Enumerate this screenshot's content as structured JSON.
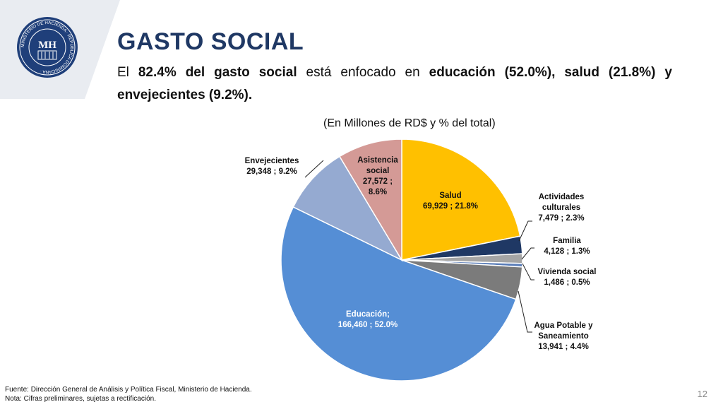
{
  "slide": {
    "title": "GASTO SOCIAL",
    "subtitle_parts": [
      {
        "text": "El ",
        "bold": false
      },
      {
        "text": "82.4% del gasto social",
        "bold": true
      },
      {
        "text": " está enfocado en ",
        "bold": false
      },
      {
        "text": "educación (52.0%), salud (21.8%) y envejecientes (9.2%).",
        "bold": true
      }
    ],
    "unit_note": "(En Millones de RD$ y % del total)",
    "footer_source": "Fuente: Dirección General de Análisis y Política Fiscal, Ministerio de Hacienda.",
    "footer_note": "Nota: Cifras preliminares, sujetas a rectificación.",
    "page_number": "12",
    "logo": {
      "monogram": "MH",
      "ring_text": "MINISTERIO DE HACIENDA · REPÚBLICA DOMINICANA ·"
    }
  },
  "chart_data": {
    "type": "pie",
    "title": "",
    "unit": "(En Millones de RD$ y % del total)",
    "slices": [
      {
        "name": "Salud",
        "value": 69929,
        "percent": 21.8,
        "color": "#ffc000",
        "label_lines": [
          "Salud",
          "69,929 ; 21.8%"
        ]
      },
      {
        "name": "Actividades culturales",
        "value": 7479,
        "percent": 2.3,
        "color": "#1f3864",
        "label_lines": [
          "Actividades",
          "culturales",
          "7,479 ; 2.3%"
        ]
      },
      {
        "name": "Familia",
        "value": 4128,
        "percent": 1.3,
        "color": "#a5a5a5",
        "label_lines": [
          "Familia",
          "4,128 ; 1.3%"
        ]
      },
      {
        "name": "Vivienda social",
        "value": 1486,
        "percent": 0.5,
        "color": "#5a7db8",
        "label_lines": [
          "Vivienda social",
          "1,486 ; 0.5%"
        ]
      },
      {
        "name": "Agua Potable y Saneamiento",
        "value": 13941,
        "percent": 4.4,
        "color": "#7b7b7b",
        "label_lines": [
          "Agua Potable y",
          "Saneamiento",
          "13,941 ; 4.4%"
        ]
      },
      {
        "name": "Educación",
        "value": 166460,
        "percent": 52.0,
        "color": "#558ed5",
        "label_lines": [
          "Educación;",
          "166,460 ; 52.0%"
        ]
      },
      {
        "name": "Envejecientes",
        "value": 29348,
        "percent": 9.2,
        "color": "#95aad1",
        "label_lines": [
          "Envejecientes",
          "29,348 ; 9.2%"
        ]
      },
      {
        "name": "Asistencia social",
        "value": 27572,
        "percent": 8.6,
        "color": "#d49a96",
        "label_lines": [
          "Asistencia",
          "social",
          "27,572 ;",
          "8.6%"
        ]
      }
    ],
    "start_angle": "12 o'clock",
    "direction": "clockwise",
    "legend": "none"
  }
}
